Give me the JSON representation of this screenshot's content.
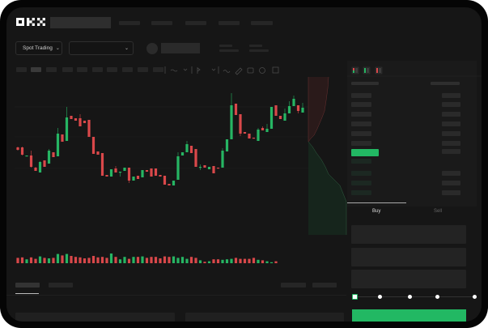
{
  "brand": {
    "logo": "OKX"
  },
  "toolbar": {
    "market_selector": "Spot Trading"
  },
  "trade_panel": {
    "tabs": [
      {
        "label": "Buy",
        "active": true
      },
      {
        "label": "Sell",
        "active": false
      }
    ],
    "slider_percent": 0
  },
  "colors": {
    "up": "#26b563",
    "down": "#d9484a",
    "accent": "#22b863",
    "background": "#161616"
  },
  "icons": [
    "chevron-down-icon",
    "indicator-icon",
    "line-icon",
    "ruler-icon",
    "camera-icon",
    "settings-icon",
    "fullscreen-icon",
    "orderbook-both-icon",
    "orderbook-buy-icon",
    "orderbook-sell-icon"
  ],
  "chart_data": {
    "type": "candlestick",
    "candles": [
      [
        58,
        59,
        54,
        55
      ],
      [
        58,
        59,
        48,
        49
      ],
      [
        47,
        48,
        47,
        48
      ],
      [
        48,
        54,
        33,
        34
      ],
      [
        33,
        34,
        29,
        29
      ],
      [
        27,
        41,
        27,
        40
      ],
      [
        42,
        42,
        34,
        34
      ],
      [
        38,
        56,
        38,
        54
      ],
      [
        52,
        52,
        46,
        46
      ],
      [
        47,
        82,
        47,
        75
      ],
      [
        74,
        74,
        65,
        65
      ],
      [
        66,
        108,
        66,
        95
      ],
      [
        97,
        97,
        93,
        93
      ],
      [
        94,
        94,
        91,
        91
      ],
      [
        94,
        99,
        84,
        84
      ],
      [
        91,
        91,
        88,
        88
      ],
      [
        92,
        92,
        71,
        71
      ],
      [
        71,
        71,
        50,
        50
      ],
      [
        53,
        53,
        49,
        49
      ],
      [
        51,
        51,
        23,
        23
      ],
      [
        24,
        24,
        22,
        22
      ],
      [
        22,
        31,
        22,
        31
      ],
      [
        32,
        35,
        27,
        27
      ],
      [
        27,
        28,
        22,
        28
      ],
      [
        29,
        33,
        29,
        33
      ],
      [
        33,
        33,
        14,
        17
      ],
      [
        17,
        22,
        17,
        22
      ],
      [
        23,
        23,
        19,
        19
      ],
      [
        21,
        30,
        21,
        30
      ],
      [
        30,
        30,
        28,
        28
      ],
      [
        32,
        32,
        22,
        22
      ],
      [
        32,
        32,
        23,
        23
      ],
      [
        24,
        24,
        22,
        22
      ],
      [
        23,
        23,
        12,
        12
      ],
      [
        13,
        13,
        11,
        11
      ],
      [
        11,
        17,
        11,
        17
      ],
      [
        18,
        52,
        18,
        47
      ],
      [
        48,
        52,
        48,
        52
      ],
      [
        52,
        66,
        52,
        62
      ],
      [
        60,
        60,
        51,
        51
      ],
      [
        56,
        56,
        34,
        34
      ],
      [
        33,
        37,
        30,
        34
      ],
      [
        36,
        36,
        33,
        33
      ],
      [
        31,
        34,
        31,
        34
      ],
      [
        35,
        35,
        26,
        26
      ],
      [
        33,
        33,
        32,
        32
      ],
      [
        33,
        57,
        33,
        54
      ],
      [
        53,
        68,
        53,
        68
      ],
      [
        68,
        125,
        68,
        110
      ],
      [
        112,
        112,
        98,
        98
      ],
      [
        99,
        99,
        72,
        75
      ],
      [
        77,
        77,
        75,
        75
      ],
      [
        75,
        75,
        69,
        69
      ],
      [
        70,
        70,
        69,
        69
      ],
      [
        66,
        82,
        66,
        80
      ],
      [
        82,
        84,
        79,
        79
      ],
      [
        77,
        87,
        77,
        81
      ],
      [
        81,
        108,
        81,
        108
      ],
      [
        110,
        110,
        97,
        97
      ],
      [
        97,
        97,
        93,
        93
      ],
      [
        91,
        106,
        91,
        100
      ],
      [
        100,
        115,
        100,
        109
      ],
      [
        109,
        122,
        109,
        118
      ],
      [
        110,
        110,
        100,
        103
      ],
      [
        101,
        113,
        101,
        107
      ]
    ],
    "volume": [
      11,
      12,
      8,
      12,
      9,
      14,
      11,
      10,
      11,
      19,
      16,
      19,
      15,
      13,
      12,
      10,
      11,
      15,
      12,
      13,
      11,
      20,
      13,
      8,
      13,
      9,
      13,
      13,
      14,
      11,
      13,
      13,
      10,
      14,
      13,
      14,
      11,
      13,
      9,
      13,
      11,
      6,
      3,
      4,
      8,
      8,
      7,
      8,
      9,
      11,
      9,
      9,
      9,
      11,
      7,
      6,
      4,
      2,
      4,
      0,
      0,
      0,
      0,
      0,
      0
    ],
    "depth": {
      "asks": true,
      "bids": true
    }
  }
}
